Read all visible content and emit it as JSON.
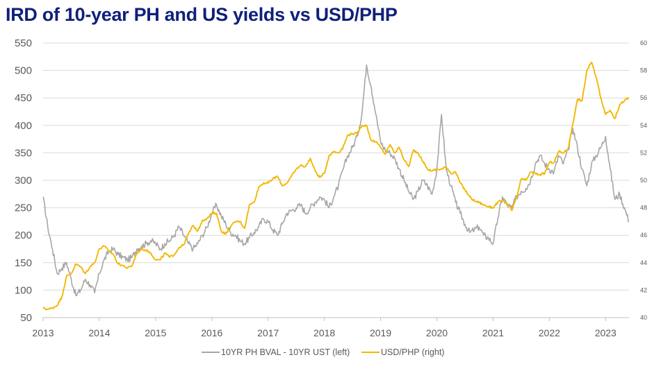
{
  "chart_data": {
    "type": "line",
    "title": "IRD of 10-year PH and US yields vs USD/PHP",
    "x_ticks": [
      "2013",
      "2014",
      "2015",
      "2016",
      "2017",
      "2018",
      "2019",
      "2020",
      "2021",
      "2022",
      "2023"
    ],
    "xlim": [
      "2013-01",
      "2023-06"
    ],
    "y_left": {
      "ticks": [
        50,
        100,
        150,
        200,
        250,
        300,
        350,
        400,
        450,
        500,
        550
      ],
      "lim": [
        50,
        550
      ]
    },
    "y_right": {
      "ticks": [
        40,
        42,
        44,
        46,
        48,
        50,
        52,
        54,
        56,
        58,
        60
      ],
      "lim": [
        40,
        60
      ]
    },
    "grid": true,
    "legend_position": "bottom",
    "series": [
      {
        "name": "10YR PH BVAL - 10YR UST (left)",
        "axis": "left",
        "color": "#a6a6a6",
        "points": [
          [
            "2013-01",
            270
          ],
          [
            "2013-02",
            215
          ],
          [
            "2013-03",
            175
          ],
          [
            "2013-04",
            130
          ],
          [
            "2013-05",
            140
          ],
          [
            "2013-06",
            150
          ],
          [
            "2013-07",
            120
          ],
          [
            "2013-08",
            90
          ],
          [
            "2013-09",
            100
          ],
          [
            "2013-10",
            120
          ],
          [
            "2013-11",
            110
          ],
          [
            "2013-12",
            95
          ],
          [
            "2014-01",
            130
          ],
          [
            "2014-02",
            155
          ],
          [
            "2014-03",
            170
          ],
          [
            "2014-04",
            175
          ],
          [
            "2014-05",
            165
          ],
          [
            "2014-06",
            160
          ],
          [
            "2014-07",
            155
          ],
          [
            "2014-08",
            160
          ],
          [
            "2014-09",
            175
          ],
          [
            "2014-10",
            180
          ],
          [
            "2014-11",
            185
          ],
          [
            "2014-12",
            190
          ],
          [
            "2015-01",
            185
          ],
          [
            "2015-02",
            175
          ],
          [
            "2015-03",
            185
          ],
          [
            "2015-04",
            190
          ],
          [
            "2015-05",
            200
          ],
          [
            "2015-06",
            215
          ],
          [
            "2015-07",
            200
          ],
          [
            "2015-08",
            185
          ],
          [
            "2015-09",
            175
          ],
          [
            "2015-10",
            185
          ],
          [
            "2015-11",
            200
          ],
          [
            "2015-12",
            215
          ],
          [
            "2016-01",
            240
          ],
          [
            "2016-02",
            255
          ],
          [
            "2016-03",
            235
          ],
          [
            "2016-04",
            220
          ],
          [
            "2016-05",
            205
          ],
          [
            "2016-06",
            200
          ],
          [
            "2016-07",
            190
          ],
          [
            "2016-08",
            185
          ],
          [
            "2016-09",
            195
          ],
          [
            "2016-10",
            205
          ],
          [
            "2016-11",
            215
          ],
          [
            "2016-12",
            230
          ],
          [
            "2017-01",
            225
          ],
          [
            "2017-02",
            210
          ],
          [
            "2017-03",
            200
          ],
          [
            "2017-04",
            220
          ],
          [
            "2017-05",
            240
          ],
          [
            "2017-06",
            245
          ],
          [
            "2017-07",
            250
          ],
          [
            "2017-08",
            255
          ],
          [
            "2017-09",
            240
          ],
          [
            "2017-10",
            250
          ],
          [
            "2017-11",
            260
          ],
          [
            "2017-12",
            270
          ],
          [
            "2018-01",
            265
          ],
          [
            "2018-02",
            250
          ],
          [
            "2018-03",
            270
          ],
          [
            "2018-04",
            290
          ],
          [
            "2018-05",
            320
          ],
          [
            "2018-06",
            345
          ],
          [
            "2018-07",
            360
          ],
          [
            "2018-08",
            380
          ],
          [
            "2018-09",
            420
          ],
          [
            "2018-10",
            510
          ],
          [
            "2018-11",
            470
          ],
          [
            "2018-12",
            420
          ],
          [
            "2019-01",
            370
          ],
          [
            "2019-02",
            355
          ],
          [
            "2019-03",
            350
          ],
          [
            "2019-04",
            340
          ],
          [
            "2019-05",
            320
          ],
          [
            "2019-06",
            300
          ],
          [
            "2019-07",
            280
          ],
          [
            "2019-08",
            265
          ],
          [
            "2019-09",
            280
          ],
          [
            "2019-10",
            300
          ],
          [
            "2019-11",
            290
          ],
          [
            "2019-12",
            275
          ],
          [
            "2020-01",
            320
          ],
          [
            "2020-02",
            420
          ],
          [
            "2020-03",
            320
          ],
          [
            "2020-04",
            290
          ],
          [
            "2020-05",
            260
          ],
          [
            "2020-06",
            240
          ],
          [
            "2020-07",
            220
          ],
          [
            "2020-08",
            205
          ],
          [
            "2020-09",
            210
          ],
          [
            "2020-10",
            215
          ],
          [
            "2020-11",
            200
          ],
          [
            "2020-12",
            195
          ],
          [
            "2021-01",
            185
          ],
          [
            "2021-02",
            230
          ],
          [
            "2021-03",
            270
          ],
          [
            "2021-04",
            255
          ],
          [
            "2021-05",
            250
          ],
          [
            "2021-06",
            270
          ],
          [
            "2021-07",
            280
          ],
          [
            "2021-08",
            285
          ],
          [
            "2021-09",
            300
          ],
          [
            "2021-10",
            330
          ],
          [
            "2021-11",
            345
          ],
          [
            "2021-12",
            330
          ],
          [
            "2022-01",
            320
          ],
          [
            "2022-02",
            315
          ],
          [
            "2022-03",
            345
          ],
          [
            "2022-04",
            330
          ],
          [
            "2022-05",
            355
          ],
          [
            "2022-06",
            395
          ],
          [
            "2022-07",
            360
          ],
          [
            "2022-08",
            320
          ],
          [
            "2022-09",
            290
          ],
          [
            "2022-10",
            330
          ],
          [
            "2022-11",
            345
          ],
          [
            "2022-12",
            360
          ],
          [
            "2023-01",
            380
          ],
          [
            "2023-02",
            320
          ],
          [
            "2023-03",
            265
          ],
          [
            "2023-04",
            275
          ],
          [
            "2023-05",
            250
          ],
          [
            "2023-06",
            225
          ]
        ]
      },
      {
        "name": "USD/PHP (right)",
        "axis": "right",
        "color": "#f2b800",
        "points": [
          [
            "2013-01",
            40.7
          ],
          [
            "2013-02",
            40.6
          ],
          [
            "2013-03",
            40.7
          ],
          [
            "2013-04",
            40.9
          ],
          [
            "2013-05",
            41.5
          ],
          [
            "2013-06",
            43.0
          ],
          [
            "2013-07",
            43.2
          ],
          [
            "2013-08",
            43.9
          ],
          [
            "2013-09",
            43.7
          ],
          [
            "2013-10",
            43.2
          ],
          [
            "2013-11",
            43.7
          ],
          [
            "2013-12",
            44.0
          ],
          [
            "2014-01",
            45.0
          ],
          [
            "2014-02",
            45.2
          ],
          [
            "2014-03",
            44.9
          ],
          [
            "2014-04",
            44.6
          ],
          [
            "2014-05",
            43.9
          ],
          [
            "2014-06",
            43.8
          ],
          [
            "2014-07",
            43.6
          ],
          [
            "2014-08",
            43.8
          ],
          [
            "2014-09",
            44.7
          ],
          [
            "2014-10",
            45.0
          ],
          [
            "2014-11",
            44.9
          ],
          [
            "2014-12",
            44.7
          ],
          [
            "2015-01",
            44.2
          ],
          [
            "2015-02",
            44.2
          ],
          [
            "2015-03",
            44.7
          ],
          [
            "2015-04",
            44.4
          ],
          [
            "2015-05",
            44.6
          ],
          [
            "2015-06",
            45.1
          ],
          [
            "2015-07",
            45.3
          ],
          [
            "2015-08",
            46.1
          ],
          [
            "2015-09",
            46.7
          ],
          [
            "2015-10",
            46.3
          ],
          [
            "2015-11",
            47.1
          ],
          [
            "2015-12",
            47.2
          ],
          [
            "2016-01",
            47.6
          ],
          [
            "2016-02",
            47.6
          ],
          [
            "2016-03",
            46.3
          ],
          [
            "2016-04",
            46.1
          ],
          [
            "2016-05",
            46.6
          ],
          [
            "2016-06",
            47.0
          ],
          [
            "2016-07",
            47.0
          ],
          [
            "2016-08",
            46.5
          ],
          [
            "2016-09",
            48.2
          ],
          [
            "2016-10",
            48.4
          ],
          [
            "2016-11",
            49.5
          ],
          [
            "2016-12",
            49.8
          ],
          [
            "2017-01",
            49.8
          ],
          [
            "2017-02",
            50.1
          ],
          [
            "2017-03",
            50.3
          ],
          [
            "2017-04",
            49.6
          ],
          [
            "2017-05",
            49.8
          ],
          [
            "2017-06",
            50.3
          ],
          [
            "2017-07",
            50.8
          ],
          [
            "2017-08",
            51.1
          ],
          [
            "2017-09",
            51.0
          ],
          [
            "2017-10",
            51.6
          ],
          [
            "2017-11",
            50.7
          ],
          [
            "2017-12",
            50.2
          ],
          [
            "2018-01",
            50.5
          ],
          [
            "2018-02",
            51.8
          ],
          [
            "2018-03",
            52.1
          ],
          [
            "2018-04",
            52.0
          ],
          [
            "2018-05",
            52.4
          ],
          [
            "2018-06",
            53.3
          ],
          [
            "2018-07",
            53.4
          ],
          [
            "2018-08",
            53.4
          ],
          [
            "2018-09",
            54.0
          ],
          [
            "2018-10",
            54.0
          ],
          [
            "2018-11",
            52.9
          ],
          [
            "2018-12",
            52.8
          ],
          [
            "2019-01",
            52.4
          ],
          [
            "2019-02",
            51.9
          ],
          [
            "2019-03",
            52.6
          ],
          [
            "2019-04",
            52.0
          ],
          [
            "2019-05",
            52.4
          ],
          [
            "2019-06",
            51.5
          ],
          [
            "2019-07",
            51.0
          ],
          [
            "2019-08",
            52.2
          ],
          [
            "2019-09",
            52.0
          ],
          [
            "2019-10",
            51.4
          ],
          [
            "2019-11",
            50.8
          ],
          [
            "2019-12",
            50.7
          ],
          [
            "2020-01",
            50.8
          ],
          [
            "2020-02",
            50.8
          ],
          [
            "2020-03",
            51.0
          ],
          [
            "2020-04",
            50.5
          ],
          [
            "2020-05",
            50.6
          ],
          [
            "2020-06",
            49.8
          ],
          [
            "2020-07",
            49.3
          ],
          [
            "2020-08",
            48.8
          ],
          [
            "2020-09",
            48.5
          ],
          [
            "2020-10",
            48.4
          ],
          [
            "2020-11",
            48.2
          ],
          [
            "2020-12",
            48.1
          ],
          [
            "2021-01",
            48.0
          ],
          [
            "2021-02",
            48.4
          ],
          [
            "2021-03",
            48.5
          ],
          [
            "2021-04",
            48.3
          ],
          [
            "2021-05",
            47.8
          ],
          [
            "2021-06",
            48.7
          ],
          [
            "2021-07",
            50.1
          ],
          [
            "2021-08",
            50.0
          ],
          [
            "2021-09",
            50.6
          ],
          [
            "2021-10",
            50.5
          ],
          [
            "2021-11",
            50.4
          ],
          [
            "2021-12",
            50.5
          ],
          [
            "2022-01",
            51.3
          ],
          [
            "2022-02",
            51.3
          ],
          [
            "2022-03",
            52.1
          ],
          [
            "2022-04",
            52.0
          ],
          [
            "2022-05",
            52.3
          ],
          [
            "2022-06",
            54.1
          ],
          [
            "2022-07",
            55.9
          ],
          [
            "2022-08",
            55.8
          ],
          [
            "2022-09",
            58.0
          ],
          [
            "2022-10",
            58.6
          ],
          [
            "2022-11",
            57.5
          ],
          [
            "2022-12",
            56.0
          ],
          [
            "2023-01",
            54.8
          ],
          [
            "2023-02",
            55.1
          ],
          [
            "2023-03",
            54.5
          ],
          [
            "2023-04",
            55.5
          ],
          [
            "2023-05",
            55.8
          ],
          [
            "2023-06",
            56.0
          ]
        ]
      }
    ]
  }
}
